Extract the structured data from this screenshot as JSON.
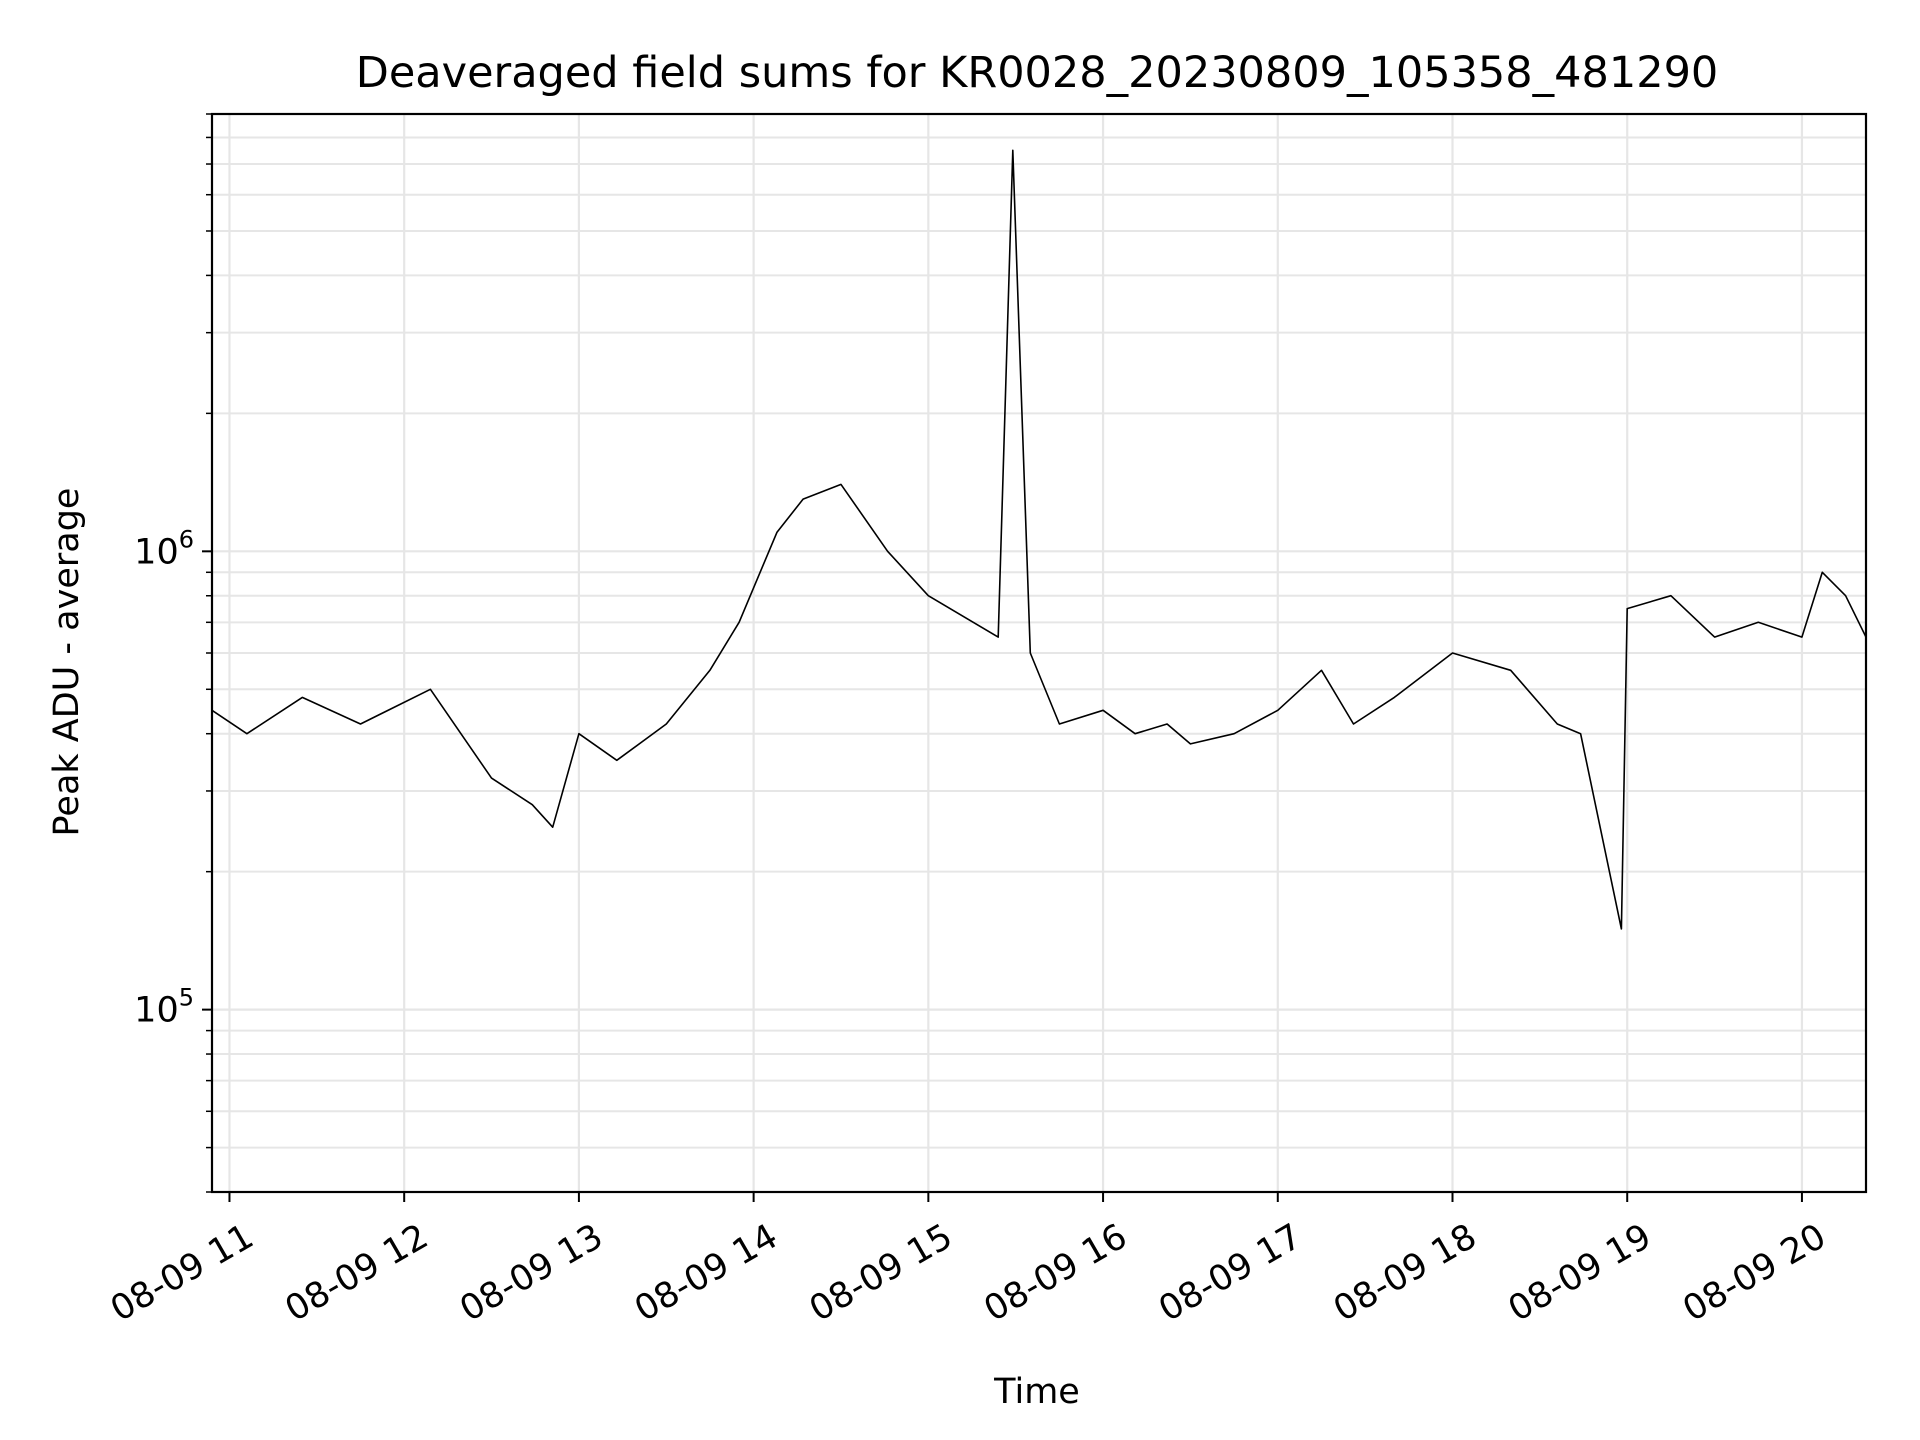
{
  "chart_data": {
    "type": "line",
    "title": "Deaveraged field sums for KR0028_20230809_105358_481290",
    "xlabel": "Time",
    "ylabel": "Peak ADU - average",
    "y_scale": "log",
    "grid": true,
    "xlim": [
      "2023-08-09 10:54",
      "2023-08-09 20:22"
    ],
    "ylim": [
      40000,
      9000000
    ],
    "x_ticks": [
      {
        "value": "2023-08-09 11:00",
        "label": "08-09 11"
      },
      {
        "value": "2023-08-09 12:00",
        "label": "08-09 12"
      },
      {
        "value": "2023-08-09 13:00",
        "label": "08-09 13"
      },
      {
        "value": "2023-08-09 14:00",
        "label": "08-09 14"
      },
      {
        "value": "2023-08-09 15:00",
        "label": "08-09 15"
      },
      {
        "value": "2023-08-09 16:00",
        "label": "08-09 16"
      },
      {
        "value": "2023-08-09 17:00",
        "label": "08-09 17"
      },
      {
        "value": "2023-08-09 18:00",
        "label": "08-09 18"
      },
      {
        "value": "2023-08-09 19:00",
        "label": "08-09 19"
      },
      {
        "value": "2023-08-09 20:00",
        "label": "08-09 20"
      }
    ],
    "y_ticks": [
      {
        "value": 100000,
        "base": "10",
        "exp": "5"
      },
      {
        "value": 1000000,
        "base": "10",
        "exp": "6"
      }
    ],
    "series": [
      {
        "color": "#000000",
        "x": [
          "2023-08-09 10:54",
          "2023-08-09 11:06",
          "2023-08-09 11:25",
          "2023-08-09 11:45",
          "2023-08-09 12:09",
          "2023-08-09 12:30",
          "2023-08-09 12:44",
          "2023-08-09 12:51",
          "2023-08-09 13:00",
          "2023-08-09 13:13",
          "2023-08-09 13:30",
          "2023-08-09 13:45",
          "2023-08-09 13:55",
          "2023-08-09 14:08",
          "2023-08-09 14:17",
          "2023-08-09 14:30",
          "2023-08-09 14:46",
          "2023-08-09 15:00",
          "2023-08-09 15:24",
          "2023-08-09 15:29",
          "2023-08-09 15:35",
          "2023-08-09 15:45",
          "2023-08-09 16:00",
          "2023-08-09 16:11",
          "2023-08-09 16:22",
          "2023-08-09 16:30",
          "2023-08-09 16:45",
          "2023-08-09 17:00",
          "2023-08-09 17:15",
          "2023-08-09 17:26",
          "2023-08-09 17:40",
          "2023-08-09 18:00",
          "2023-08-09 18:20",
          "2023-08-09 18:36",
          "2023-08-09 18:44",
          "2023-08-09 18:58",
          "2023-08-09 19:00",
          "2023-08-09 19:15",
          "2023-08-09 19:30",
          "2023-08-09 19:45",
          "2023-08-09 20:00",
          "2023-08-09 20:07",
          "2023-08-09 20:15",
          "2023-08-09 20:22"
        ],
        "values": [
          450000,
          400000,
          480000,
          420000,
          500000,
          320000,
          280000,
          250000,
          400000,
          350000,
          420000,
          550000,
          700000,
          1100000,
          1300000,
          1400000,
          1000000,
          800000,
          650000,
          7500000,
          600000,
          420000,
          450000,
          400000,
          420000,
          380000,
          400000,
          450000,
          550000,
          420000,
          480000,
          600000,
          550000,
          420000,
          400000,
          150000,
          750000,
          800000,
          650000,
          700000,
          650000,
          900000,
          800000,
          650000
        ]
      }
    ]
  }
}
